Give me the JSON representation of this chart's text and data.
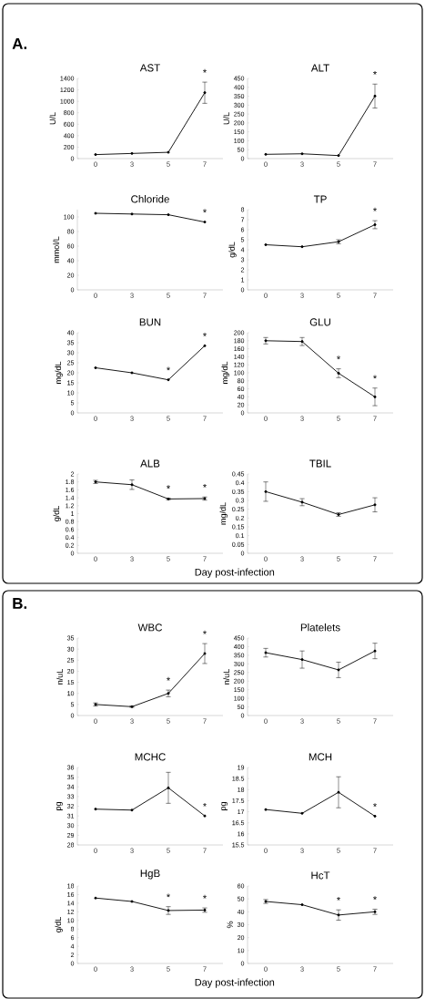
{
  "chart_data": [
    {
      "type": "line",
      "title": "AST",
      "ylabel": "U/L",
      "categories": [
        "0",
        "3",
        "5",
        "7"
      ],
      "values": [
        70,
        90,
        110,
        1150
      ],
      "errors": [
        null,
        null,
        null,
        185
      ],
      "color": "#000000",
      "marker": "circle",
      "ylim": [
        0,
        1400
      ],
      "yticks": [
        0,
        200,
        400,
        600,
        800,
        1000,
        1200,
        1400
      ],
      "annotations": [
        "A.",
        {
          "text": "*",
          "x": "7",
          "y": 1150
        }
      ]
    },
    {
      "type": "line",
      "title": "ALT",
      "ylabel": "U/L",
      "categories": [
        "0",
        "3",
        "5",
        "7"
      ],
      "values": [
        24,
        27,
        17,
        351
      ],
      "errors": [
        null,
        null,
        null,
        67
      ],
      "color": "#000000",
      "marker": "circle",
      "ylim": [
        0,
        450
      ],
      "yticks": [
        0,
        50,
        100,
        150,
        200,
        250,
        300,
        350,
        400,
        450
      ],
      "annotations": [
        {
          "text": "*",
          "x": "7",
          "y": 351
        }
      ]
    },
    {
      "type": "line",
      "title": "Chloride",
      "ylabel": "mmol/L",
      "categories": [
        "0",
        "3",
        "5",
        "7"
      ],
      "values": [
        105,
        104,
        103,
        93
      ],
      "color": "#000000",
      "marker": "circle",
      "ylim": [
        0,
        110
      ],
      "yticks": [
        0,
        20,
        40,
        60,
        80,
        100
      ],
      "annotations": [
        {
          "text": "*",
          "x": "7",
          "y": 93
        }
      ]
    },
    {
      "type": "line",
      "title": "TP",
      "ylabel": "g/dL",
      "categories": [
        "0",
        "3",
        "5",
        "7"
      ],
      "values": [
        4.5,
        4.3,
        4.8,
        6.5
      ],
      "errors": [
        null,
        null,
        0.2,
        0.4
      ],
      "color": "#000000",
      "marker": "circle",
      "ylim": [
        0,
        8
      ],
      "yticks": [
        0,
        1,
        2,
        3,
        4,
        5,
        6,
        7,
        8
      ],
      "annotations": [
        {
          "text": "*",
          "x": "7",
          "y": 6.5
        }
      ]
    },
    {
      "type": "line",
      "title": "BUN",
      "ylabel": "mg/dL",
      "categories": [
        "0",
        "3",
        "5",
        "7"
      ],
      "values": [
        22.5,
        20,
        16.5,
        33.5
      ],
      "color": "#000000",
      "marker": "circle",
      "ylim": [
        0,
        40
      ],
      "yticks": [
        0,
        5,
        10,
        15,
        20,
        25,
        30,
        35,
        40
      ],
      "annotations": [
        {
          "text": "*",
          "x": "5",
          "y": 16.5
        },
        {
          "text": "*",
          "x": "7",
          "y": 33.5
        }
      ]
    },
    {
      "type": "line",
      "title": "GLU",
      "ylabel": "mg/dL",
      "categories": [
        "0",
        "3",
        "5",
        "7"
      ],
      "values": [
        180,
        178,
        99,
        40
      ],
      "errors": [
        8,
        10,
        11,
        22
      ],
      "color": "#000000",
      "marker": "circle",
      "ylim": [
        0,
        200
      ],
      "yticks": [
        0,
        20,
        40,
        60,
        80,
        100,
        120,
        140,
        160,
        180,
        200
      ],
      "annotations": [
        {
          "text": "*",
          "x": "5",
          "y": 99
        },
        {
          "text": "*",
          "x": "7",
          "y": 40
        }
      ]
    },
    {
      "type": "line",
      "title": "ALB",
      "ylabel": "g/dL",
      "xlabel": "Day post-infection",
      "categories": [
        "0",
        "3",
        "5",
        "7"
      ],
      "values": [
        1.8,
        1.73,
        1.37,
        1.38
      ],
      "errors": [
        0.04,
        0.12,
        0.02,
        0.04
      ],
      "color": "#000000",
      "marker": "circle",
      "ylim": [
        0,
        2
      ],
      "yticks": [
        0,
        0.2,
        0.4,
        0.6,
        0.8,
        1,
        1.2,
        1.4,
        1.6,
        1.8,
        2
      ],
      "annotations": [
        {
          "text": "*",
          "x": "5",
          "y": 1.37
        },
        {
          "text": "*",
          "x": "7",
          "y": 1.38
        }
      ]
    },
    {
      "type": "line",
      "title": "TBIL",
      "ylabel": "mg/dL",
      "categories": [
        "0",
        "3",
        "5",
        "7"
      ],
      "values": [
        0.35,
        0.29,
        0.22,
        0.275
      ],
      "errors": [
        0.055,
        0.02,
        0.01,
        0.04
      ],
      "color": "#000000",
      "marker": "circle",
      "ylim": [
        0,
        0.45
      ],
      "yticks": [
        0,
        0.05,
        0.1,
        0.15,
        0.2,
        0.25,
        0.3,
        0.35,
        0.4,
        0.45
      ]
    },
    {
      "type": "line",
      "title": "WBC",
      "ylabel": "n/uL",
      "categories": [
        "0",
        "3",
        "5",
        "7"
      ],
      "values": [
        5,
        4,
        10,
        28
      ],
      "errors": [
        0.7,
        0.3,
        1.5,
        4.5
      ],
      "color": "#000000",
      "marker": "circle",
      "ylim": [
        0,
        35
      ],
      "yticks": [
        0,
        5,
        10,
        15,
        20,
        25,
        30,
        35
      ],
      "annotations": [
        "B.",
        {
          "text": "*",
          "x": "5",
          "y": 10
        },
        {
          "text": "*",
          "x": "7",
          "y": 28
        }
      ]
    },
    {
      "type": "line",
      "title": "Platelets",
      "ylabel": "n/uL",
      "categories": [
        "0",
        "3",
        "5",
        "7"
      ],
      "values": [
        365,
        325,
        265,
        375
      ],
      "errors": [
        25,
        50,
        45,
        45
      ],
      "color": "#000000",
      "marker": "circle",
      "ylim": [
        0,
        450
      ],
      "yticks": [
        0,
        50,
        100,
        150,
        200,
        250,
        300,
        350,
        400,
        450
      ]
    },
    {
      "type": "line",
      "title": "MCHC",
      "ylabel": "pg",
      "categories": [
        "0",
        "3",
        "5",
        "7"
      ],
      "values": [
        31.7,
        31.6,
        33.9,
        31.0
      ],
      "errors": [
        null,
        null,
        1.6,
        null
      ],
      "color": "#000000",
      "marker": "circle",
      "ylim": [
        28,
        36
      ],
      "yticks": [
        28,
        29,
        30,
        31,
        32,
        33,
        34,
        35,
        36
      ],
      "annotations": [
        {
          "text": "*",
          "x": "7",
          "y": 31.0
        }
      ]
    },
    {
      "type": "line",
      "title": "MCH",
      "ylabel": "pg",
      "categories": [
        "0",
        "3",
        "5",
        "7"
      ],
      "values": [
        17.1,
        16.93,
        17.88,
        16.8
      ],
      "errors": [
        null,
        null,
        0.7,
        null
      ],
      "color": "#000000",
      "marker": "circle",
      "ylim": [
        15.5,
        19
      ],
      "yticks": [
        15.5,
        16,
        16.5,
        17,
        17.5,
        18,
        18.5,
        19
      ],
      "annotations": [
        {
          "text": "*",
          "x": "7",
          "y": 16.8
        }
      ]
    },
    {
      "type": "line",
      "title": "HgB",
      "ylabel": "g/dL",
      "xlabel": "Day post-infection",
      "categories": [
        "0",
        "3",
        "5",
        "7"
      ],
      "values": [
        15.2,
        14.4,
        12.3,
        12.4
      ],
      "errors": [
        null,
        null,
        0.9,
        0.5
      ],
      "color": "#000000",
      "marker": "circle",
      "ylim": [
        0,
        18
      ],
      "yticks": [
        0,
        2,
        4,
        6,
        8,
        10,
        12,
        14,
        16,
        18
      ],
      "annotations": [
        {
          "text": "*",
          "x": "5",
          "y": 12.3
        },
        {
          "text": "*",
          "x": "7",
          "y": 12.4
        }
      ]
    },
    {
      "type": "line",
      "title": "HcT",
      "ylabel": "%",
      "categories": [
        "0",
        "3",
        "5",
        "7"
      ],
      "values": [
        48,
        45.5,
        37.5,
        40
      ],
      "errors": [
        1.5,
        null,
        4,
        2
      ],
      "color": "#000000",
      "marker": "circle",
      "ylim": [
        0,
        60
      ],
      "yticks": [
        0,
        10,
        20,
        30,
        40,
        50,
        60
      ],
      "annotations": [
        {
          "text": "*",
          "x": "5",
          "y": 37.5
        },
        {
          "text": "*",
          "x": "7",
          "y": 40
        }
      ]
    }
  ]
}
